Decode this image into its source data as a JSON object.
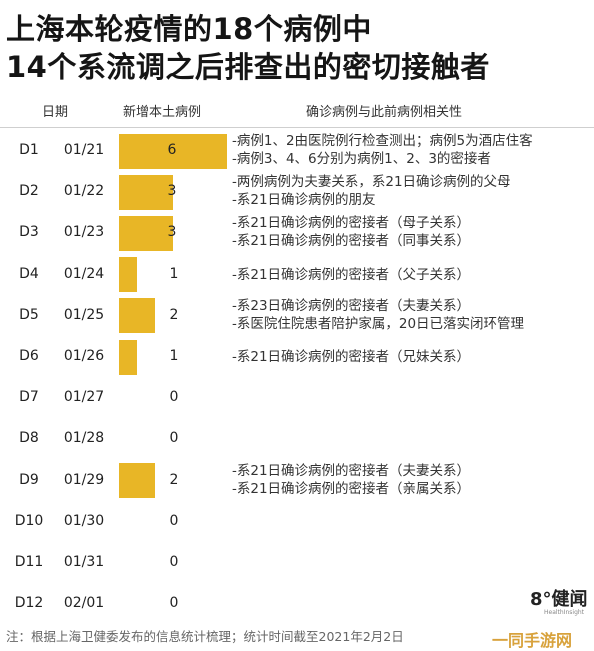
{
  "title_line1": "上海本轮疫情的18个病例中",
  "title_line2": "14个系流调之后排查出的密切接触者",
  "columns": {
    "day": "日期",
    "count": "新增本土病例",
    "relation": "确诊病例与此前病例相关性"
  },
  "rows": [
    {
      "day": "D1",
      "date": "01/21",
      "value": "6",
      "relations": [
        "-病例1、2由医院例行检查测出；病例5为酒店住客",
        "-病例3、4、6分别为病例1、2、3的密接者"
      ]
    },
    {
      "day": "D2",
      "date": "01/22",
      "value": "3",
      "relations": [
        "-两例病例为夫妻关系，系21日确诊病例的父母",
        "-系21日确诊病例的朋友"
      ]
    },
    {
      "day": "D3",
      "date": "01/23",
      "value": "3",
      "relations": [
        "-系21日确诊病例的密接者（母子关系）",
        "-系21日确诊病例的密接者（同事关系）"
      ]
    },
    {
      "day": "D4",
      "date": "01/24",
      "value": "1",
      "relations": [
        "-系21日确诊病例的密接者（父子关系）"
      ]
    },
    {
      "day": "D5",
      "date": "01/25",
      "value": "2",
      "relations": [
        "-系23日确诊病例的密接者（夫妻关系）",
        "-系医院住院患者陪护家属，20日已落实闭环管理"
      ]
    },
    {
      "day": "D6",
      "date": "01/26",
      "value": "1",
      "relations": [
        "-系21日确诊病例的密接者（兄妹关系）"
      ]
    },
    {
      "day": "D7",
      "date": "01/27",
      "value": "0",
      "relations": []
    },
    {
      "day": "D8",
      "date": "01/28",
      "value": "0",
      "relations": []
    },
    {
      "day": "D9",
      "date": "01/29",
      "value": "2",
      "relations": [
        "-系21日确诊病例的密接者（夫妻关系）",
        "-系21日确诊病例的密接者（亲属关系）"
      ]
    },
    {
      "day": "D10",
      "date": "01/30",
      "value": "0",
      "relations": []
    },
    {
      "day": "D11",
      "date": "01/31",
      "value": "0",
      "relations": []
    },
    {
      "day": "D12",
      "date": "02/01",
      "value": "0",
      "relations": []
    }
  ],
  "chart_data": {
    "type": "bar",
    "categories": [
      "01/21",
      "01/22",
      "01/23",
      "01/24",
      "01/25",
      "01/26",
      "01/27",
      "01/28",
      "01/29",
      "01/30",
      "01/31",
      "02/01"
    ],
    "values": [
      6,
      3,
      3,
      1,
      2,
      1,
      0,
      0,
      2,
      0,
      0,
      0
    ],
    "title": "上海本轮疫情的18个病例中 14个系流调之后排查出的密切接触者",
    "xlabel": "日期",
    "ylabel": "新增本土病例",
    "ylim": [
      0,
      6
    ]
  },
  "footnote": "注：根据上海卫健委发布的信息统计梳理；统计时间截至2021年2月2日",
  "logo": {
    "main": "8°健闻",
    "sub": "HealthInsight"
  },
  "watermark": "一同手游网",
  "colors": {
    "bar": "#e8b626"
  }
}
